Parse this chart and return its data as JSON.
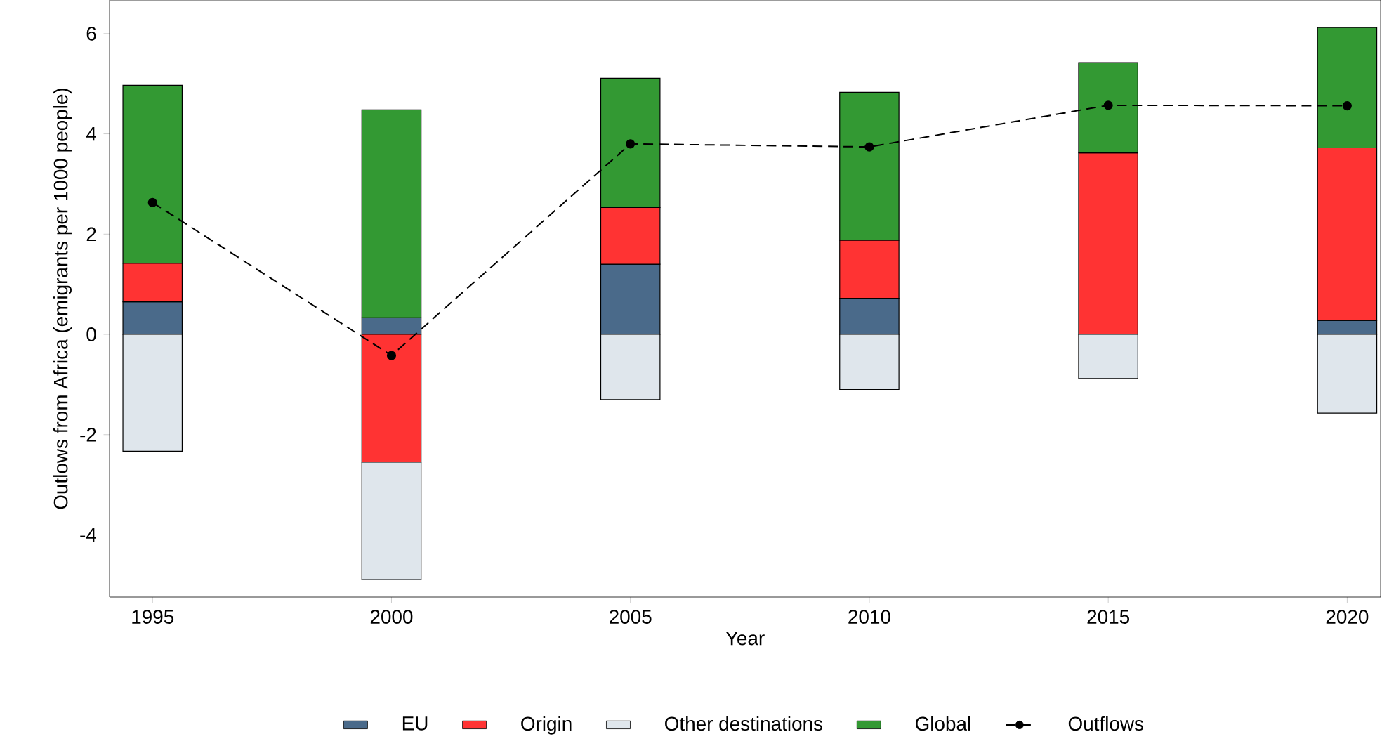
{
  "chart_data": {
    "type": "bar",
    "stacked": true,
    "xlabel": "Year",
    "ylabel": "Outlows from Africa (emigrants per 1000 people)",
    "x": [
      1995,
      2000,
      2005,
      2010,
      2015,
      2020
    ],
    "xlim": [
      1994.1,
      2020.7
    ],
    "ylim": [
      -5.24,
      6.67
    ],
    "xticks": [
      1995,
      2000,
      2005,
      2010,
      2015,
      2020
    ],
    "yticks": [
      -4,
      -2,
      0,
      2,
      4,
      6
    ],
    "legend": "bottom",
    "series": [
      {
        "name": "EU",
        "color": "#4a6a8a",
        "values": [
          0.65,
          0.33,
          1.4,
          0.72,
          null,
          0.28
        ]
      },
      {
        "name": "Origin",
        "color": "#ff3333",
        "values": [
          0.77,
          -2.55,
          1.13,
          1.16,
          3.62,
          3.44
        ]
      },
      {
        "name": "Other destinations",
        "color": "#dfe6ec",
        "values": [
          -2.33,
          -2.34,
          -1.3,
          -1.1,
          -0.88,
          -1.57
        ]
      },
      {
        "name": "Global",
        "color": "#339933",
        "values": [
          3.55,
          4.15,
          2.58,
          2.95,
          1.8,
          2.4
        ]
      },
      {
        "name": "Outflows",
        "type": "line",
        "color": "#000000",
        "marker": "circle",
        "line_style": "dashed",
        "values": [
          2.63,
          -0.42,
          3.8,
          3.74,
          4.57,
          4.56
        ]
      }
    ]
  }
}
